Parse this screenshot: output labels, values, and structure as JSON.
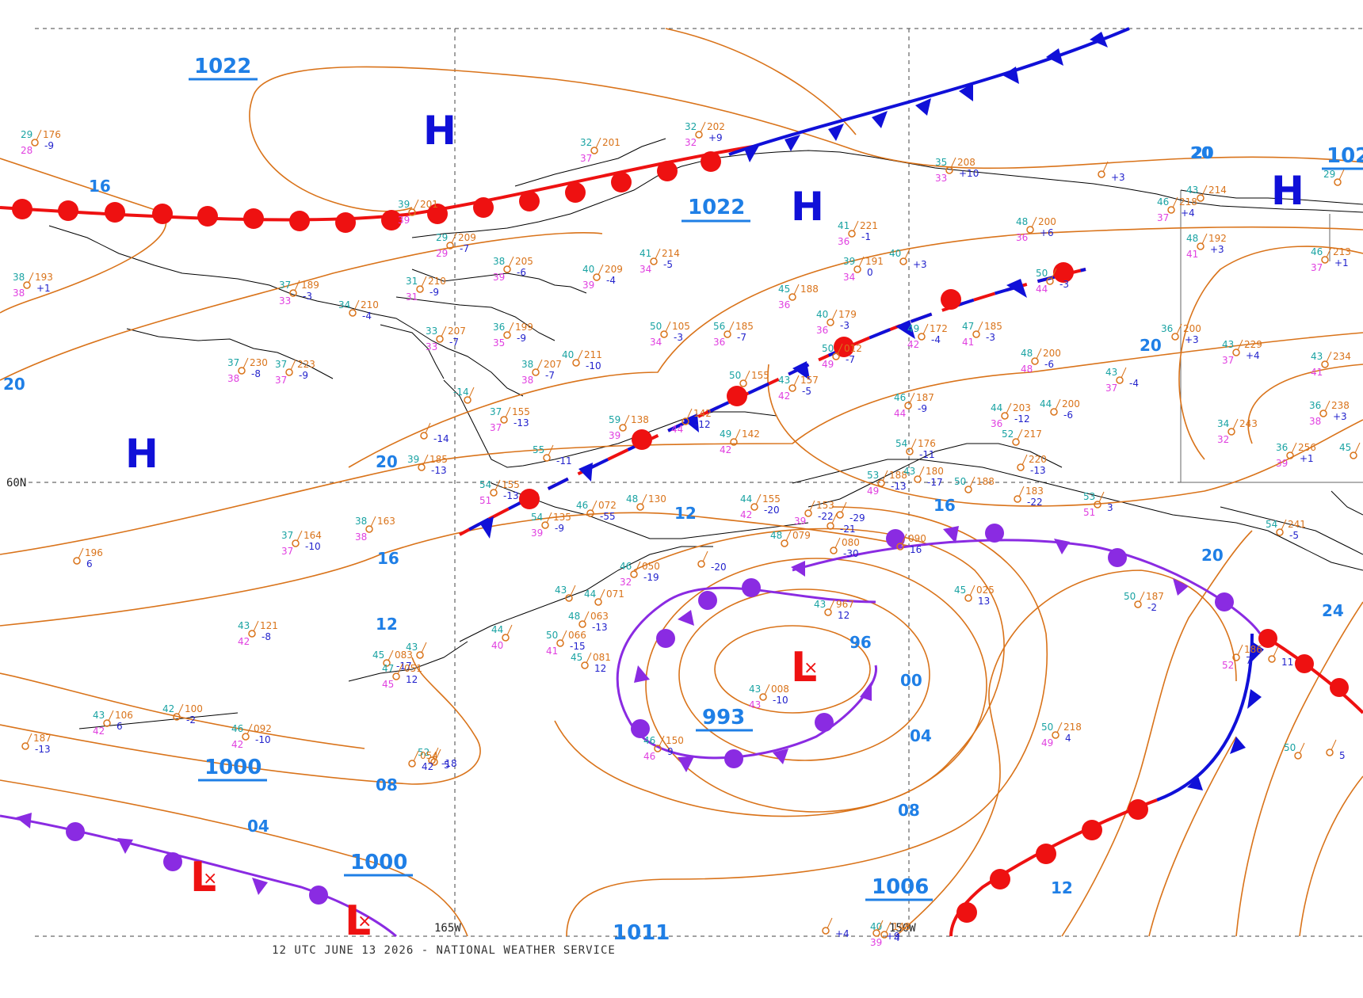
{
  "footer": "12 UTC JUNE 13 2026 - NATIONAL WEATHER SERVICE",
  "grid_labels": {
    "lat60": "60N",
    "lon165": "165W",
    "lon150": "150W"
  },
  "colors": {
    "isobar": "#d9731a",
    "label": "#1f7fe6",
    "high": "#1010d8",
    "low": "#ee1111",
    "warm": "#ee1111",
    "cold": "#1010d8",
    "occluded": "#8a2be2",
    "coast": "#000000",
    "temp": "#1aa3a3",
    "dew": "#e040e0",
    "press": "#d9731a",
    "tend": "#2222cc"
  },
  "pressure_labels": [
    {
      "text": "1022",
      "cls": "big"
    },
    {
      "text": "1022",
      "cls": "big"
    },
    {
      "text": "1022",
      "cls": "big"
    },
    {
      "text": "1000",
      "cls": "big"
    },
    {
      "text": "1000",
      "cls": "big"
    },
    {
      "text": "993",
      "cls": "big"
    },
    {
      "text": "1006",
      "cls": "big"
    },
    {
      "text": "1011",
      "cls": "big"
    }
  ],
  "isobar_labels": [
    "16",
    "20",
    "20",
    "16",
    "12",
    "08",
    "04",
    "20",
    "16",
    "12",
    "96",
    "00",
    "04",
    "08",
    "12",
    "20",
    "24",
    "20",
    "20"
  ],
  "systems": [
    {
      "type": "H"
    },
    {
      "type": "H"
    },
    {
      "type": "H"
    },
    {
      "type": "H"
    },
    {
      "type": "L"
    },
    {
      "type": "L"
    },
    {
      "type": "L"
    }
  ],
  "stations": [
    {
      "t": "29",
      "p": "176",
      "d": "28",
      "tend": "-9"
    },
    {
      "t": "38",
      "p": "193",
      "d": "38",
      "tend": "+1"
    },
    {
      "t": "37",
      "p": "189",
      "d": "33",
      "tend": "-3"
    },
    {
      "t": "34",
      "p": "210",
      "d": "",
      "tend": "-4"
    },
    {
      "t": "37",
      "p": "230",
      "d": "38",
      "tend": "-8"
    },
    {
      "t": "37",
      "p": "223",
      "d": "37",
      "tend": "-9"
    },
    {
      "t": "39",
      "p": "201",
      "d": "39",
      "tend": ""
    },
    {
      "t": "29",
      "p": "209",
      "d": "29",
      "tend": "-7"
    },
    {
      "t": "31",
      "p": "210",
      "d": "31",
      "tend": "-9"
    },
    {
      "t": "38",
      "p": "205",
      "d": "39",
      "tend": "-6"
    },
    {
      "t": "33",
      "p": "207",
      "d": "33",
      "tend": "-7"
    },
    {
      "t": "36",
      "p": "199",
      "d": "35",
      "tend": "-9"
    },
    {
      "t": "38",
      "p": "207",
      "d": "38",
      "tend": "-7"
    },
    {
      "t": "40",
      "p": "211",
      "d": "",
      "tend": "-10"
    },
    {
      "t": "40",
      "p": "209",
      "d": "39",
      "tend": "-4"
    },
    {
      "t": "41",
      "p": "214",
      "d": "34",
      "tend": "-5"
    },
    {
      "t": "32",
      "p": "201",
      "d": "37",
      "tend": ""
    },
    {
      "t": "32",
      "p": "202",
      "d": "32",
      "tend": "+9"
    },
    {
      "t": "41",
      "p": "221",
      "d": "36",
      "tend": "-1"
    },
    {
      "t": "39",
      "p": "191",
      "d": "34",
      "tend": "0"
    },
    {
      "t": "40",
      "p": "",
      "d": "",
      "tend": "+3"
    },
    {
      "t": "45",
      "p": "188",
      "d": "36",
      "tend": ""
    },
    {
      "t": "50",
      "p": "105",
      "d": "34",
      "tend": "-3"
    },
    {
      "t": "56",
      "p": "185",
      "d": "36",
      "tend": "-7"
    },
    {
      "t": "40",
      "p": "179",
      "d": "36",
      "tend": "-3"
    },
    {
      "t": "50",
      "p": "012",
      "d": "49",
      "tend": "-7"
    },
    {
      "t": "49",
      "p": "172",
      "d": "42",
      "tend": "-4"
    },
    {
      "t": "47",
      "p": "185",
      "d": "41",
      "tend": "-3"
    },
    {
      "t": "35",
      "p": "208",
      "d": "33",
      "tend": "+10"
    },
    {
      "t": "",
      "p": "",
      "d": "",
      "tend": "+3"
    },
    {
      "t": "48",
      "p": "200",
      "d": "36",
      "tend": "+6"
    },
    {
      "t": "50",
      "p": "",
      "d": "44",
      "tend": "-3"
    },
    {
      "t": "43",
      "p": "214",
      "d": "",
      "tend": ""
    },
    {
      "t": "46",
      "p": "218",
      "d": "37",
      "tend": "+4"
    },
    {
      "t": "48",
      "p": "192",
      "d": "41",
      "tend": "+3"
    },
    {
      "t": "46",
      "p": "213",
      "d": "37",
      "tend": "+1"
    },
    {
      "t": "29",
      "p": "",
      "d": "",
      "tend": ""
    },
    {
      "t": "-14",
      "p": "",
      "d": "",
      "tend": ""
    },
    {
      "t": "37",
      "p": "155",
      "d": "37",
      "tend": "-13"
    },
    {
      "t": "",
      "p": "",
      "d": "",
      "tend": "-14"
    },
    {
      "t": "59",
      "p": "138",
      "d": "39",
      "tend": ""
    },
    {
      "t": "",
      "p": "142",
      "d": "44",
      "tend": "-12"
    },
    {
      "t": "49",
      "p": "142",
      "d": "42",
      "tend": ""
    },
    {
      "t": "50",
      "p": "155",
      "d": "",
      "tend": ""
    },
    {
      "t": "43",
      "p": "157",
      "d": "42",
      "tend": "-5"
    },
    {
      "t": "55",
      "p": "",
      "d": "",
      "tend": "-11"
    },
    {
      "t": "39",
      "p": "185",
      "d": "",
      "tend": "-13"
    },
    {
      "t": "54",
      "p": "155",
      "d": "51",
      "tend": "-13"
    },
    {
      "t": "48",
      "p": "200",
      "d": "48",
      "tend": "-6"
    },
    {
      "t": "36",
      "p": "200",
      "d": "",
      "tend": "+3"
    },
    {
      "t": "43",
      "p": "229",
      "d": "37",
      "tend": "+4"
    },
    {
      "t": "43",
      "p": "234",
      "d": "41",
      "tend": ""
    },
    {
      "t": "43",
      "p": "",
      "d": "37",
      "tend": "-4"
    },
    {
      "t": "46",
      "p": "187",
      "d": "44",
      "tend": "-9"
    },
    {
      "t": "44",
      "p": "203",
      "d": "36",
      "tend": "-12"
    },
    {
      "t": "44",
      "p": "200",
      "d": "",
      "tend": "-6"
    },
    {
      "t": "36",
      "p": "238",
      "d": "38",
      "tend": "+3"
    },
    {
      "t": "34",
      "p": "243",
      "d": "32",
      "tend": ""
    },
    {
      "t": "36",
      "p": "256",
      "d": "39",
      "tend": "+1"
    },
    {
      "t": "45",
      "p": "",
      "d": "",
      "tend": ""
    },
    {
      "t": "52",
      "p": "217",
      "d": "",
      "tend": ""
    },
    {
      "t": "",
      "p": "220",
      "d": "",
      "tend": "-13"
    },
    {
      "t": "54",
      "p": "176",
      "d": "",
      "tend": "-11"
    },
    {
      "t": "53",
      "p": "188",
      "d": "49",
      "tend": "-13"
    },
    {
      "t": "43",
      "p": "180",
      "d": "",
      "tend": "-17"
    },
    {
      "t": "50",
      "p": "188",
      "d": "",
      "tend": ""
    },
    {
      "t": "",
      "p": "183",
      "d": "",
      "tend": "-22"
    },
    {
      "t": "38",
      "p": "163",
      "d": "38",
      "tend": ""
    },
    {
      "t": "37",
      "p": "164",
      "d": "37",
      "tend": "-10"
    },
    {
      "t": "",
      "p": "196",
      "d": "",
      "tend": "6"
    },
    {
      "t": "54",
      "p": "135",
      "d": "39",
      "tend": "-9"
    },
    {
      "t": "46",
      "p": "072",
      "d": "",
      "tend": "-55"
    },
    {
      "t": "48",
      "p": "130",
      "d": "",
      "tend": ""
    },
    {
      "t": "44",
      "p": "155",
      "d": "42",
      "tend": "-20"
    },
    {
      "t": "",
      "p": "153",
      "d": "39",
      "tend": "-22"
    },
    {
      "t": "",
      "p": "",
      "d": "",
      "tend": "-29"
    },
    {
      "t": "",
      "p": "",
      "d": "",
      "tend": "-21"
    },
    {
      "t": "48",
      "p": "079",
      "d": "",
      "tend": ""
    },
    {
      "t": "",
      "p": "080",
      "d": "",
      "tend": "-30"
    },
    {
      "t": "",
      "p": "090",
      "d": "",
      "tend": "16"
    },
    {
      "t": "46",
      "p": "050",
      "d": "32",
      "tend": "-19"
    },
    {
      "t": "",
      "p": "",
      "d": "",
      "tend": "-20"
    },
    {
      "t": "43",
      "p": "",
      "d": "",
      "tend": ""
    },
    {
      "t": "44",
      "p": "071",
      "d": "",
      "tend": ""
    },
    {
      "t": "48",
      "p": "063",
      "d": "",
      "tend": "-13"
    },
    {
      "t": "50",
      "p": "066",
      "d": "41",
      "tend": "-15"
    },
    {
      "t": "44",
      "p": "",
      "d": "40",
      "tend": ""
    },
    {
      "t": "45",
      "p": "083",
      "d": "",
      "tend": "-17"
    },
    {
      "t": "43",
      "p": "",
      "d": "",
      "tend": ""
    },
    {
      "t": "47",
      "p": "051",
      "d": "45",
      "tend": "12"
    },
    {
      "t": "45",
      "p": "081",
      "d": "",
      "tend": "12"
    },
    {
      "t": "45",
      "p": "025",
      "d": "",
      "tend": "13"
    },
    {
      "t": "43",
      "p": "967",
      "d": "",
      "tend": "12"
    },
    {
      "t": "43",
      "p": "008",
      "d": "43",
      "tend": "-10"
    },
    {
      "t": "46",
      "p": "150",
      "d": "46",
      "tend": "9"
    },
    {
      "t": "50",
      "p": "187",
      "d": "",
      "tend": "-2"
    },
    {
      "t": "",
      "p": "186",
      "d": "52",
      "tend": "7"
    },
    {
      "t": "",
      "p": "",
      "d": "",
      "tend": "11"
    },
    {
      "t": "50",
      "p": "218",
      "d": "49",
      "tend": "4"
    },
    {
      "t": "53",
      "p": "",
      "d": "51",
      "tend": "3"
    },
    {
      "t": "54",
      "p": "241",
      "d": "",
      "tend": "-5"
    },
    {
      "t": "",
      "p": "",
      "d": "",
      "tend": "5"
    },
    {
      "t": "52",
      "p": "",
      "d": "",
      "tend": "-18"
    },
    {
      "t": "40",
      "p": "148",
      "d": "39",
      "tend": "4"
    },
    {
      "t": "43",
      "p": "121",
      "d": "42",
      "tend": "-8"
    },
    {
      "t": "42",
      "p": "100",
      "d": "",
      "tend": "-2"
    },
    {
      "t": "43",
      "p": "106",
      "d": "42",
      "tend": "6"
    },
    {
      "t": "46",
      "p": "092",
      "d": "42",
      "tend": "-10"
    },
    {
      "t": "",
      "p": "",
      "d": "",
      "tend": "5"
    },
    {
      "t": "",
      "p": "054",
      "d": "",
      "tend": "42"
    },
    {
      "t": "",
      "p": "187",
      "d": "",
      "tend": "-13"
    },
    {
      "t": "50",
      "p": "",
      "d": "",
      "tend": ""
    },
    {
      "t": "",
      "p": "",
      "d": "",
      "tend": "+9"
    },
    {
      "t": "",
      "p": "",
      "d": "",
      "tend": "+4"
    }
  ]
}
